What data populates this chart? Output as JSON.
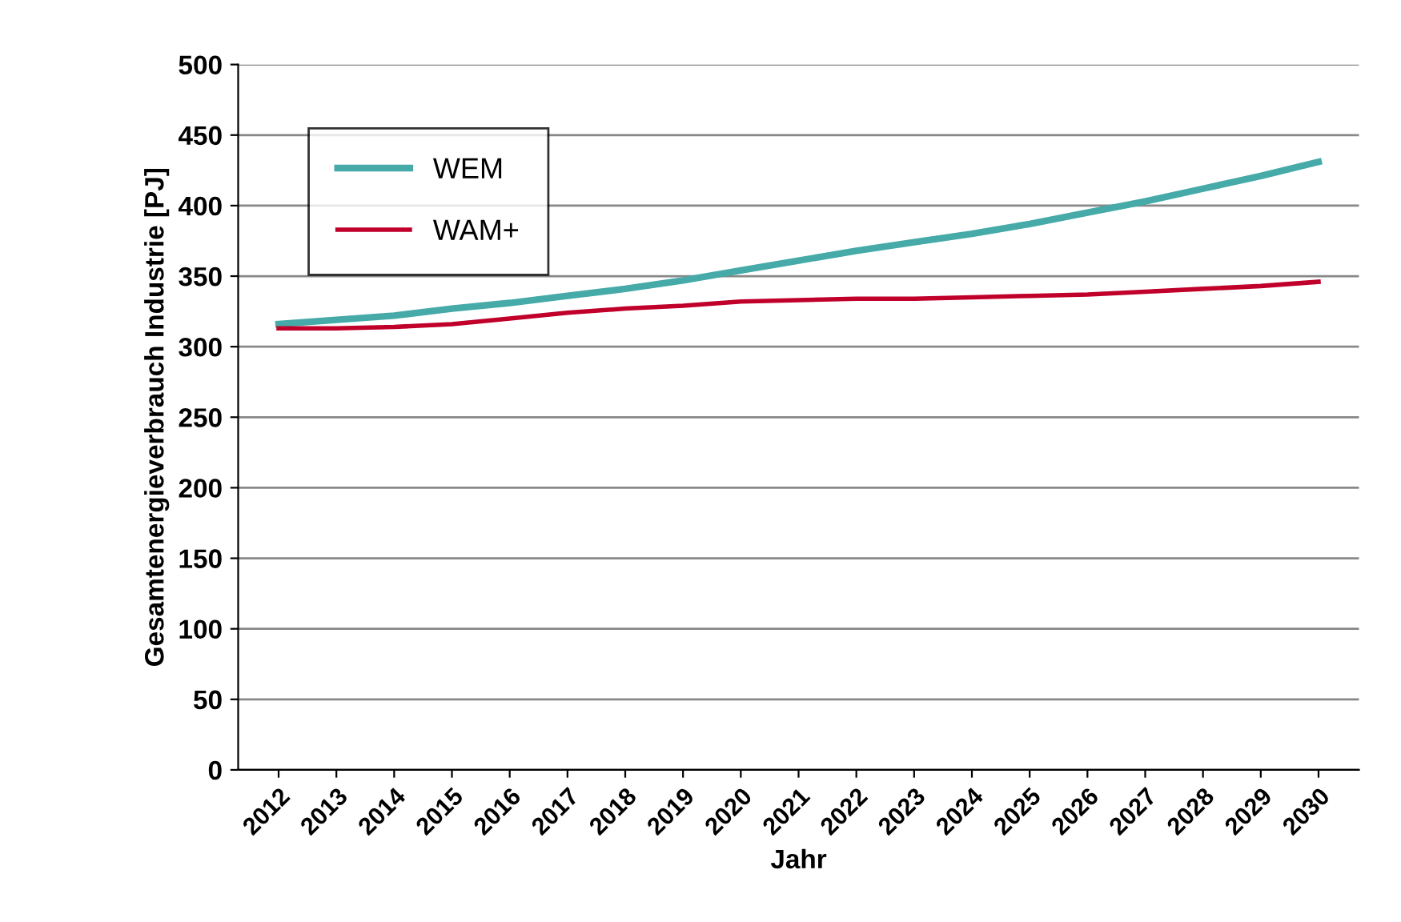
{
  "chart_data": {
    "type": "line",
    "xlabel": "Jahr",
    "ylabel": "Gesamtenergieverbrauch Industrie [PJ]",
    "categories": [
      "2012",
      "2013",
      "2014",
      "2015",
      "2016",
      "2017",
      "2018",
      "2019",
      "2020",
      "2021",
      "2022",
      "2023",
      "2024",
      "2025",
      "2026",
      "2027",
      "2028",
      "2029",
      "2030"
    ],
    "series": [
      {
        "name": "WEM",
        "color": "#45aaa8",
        "values": [
          316,
          319,
          322,
          327,
          331,
          336,
          341,
          347,
          354,
          361,
          368,
          374,
          380,
          387,
          395,
          403,
          412,
          421,
          431
        ]
      },
      {
        "name": "WAM+",
        "color": "#c0002a",
        "values": [
          313,
          313,
          314,
          316,
          320,
          324,
          327,
          329,
          332,
          333,
          334,
          334,
          335,
          336,
          337,
          339,
          341,
          343,
          346
        ]
      }
    ],
    "ylim": [
      0,
      500
    ],
    "yticks": [
      0,
      50,
      100,
      150,
      200,
      250,
      300,
      350,
      400,
      450,
      500
    ],
    "grid": "y",
    "legend": "top left",
    "marker": "none",
    "line_style": "solid"
  }
}
